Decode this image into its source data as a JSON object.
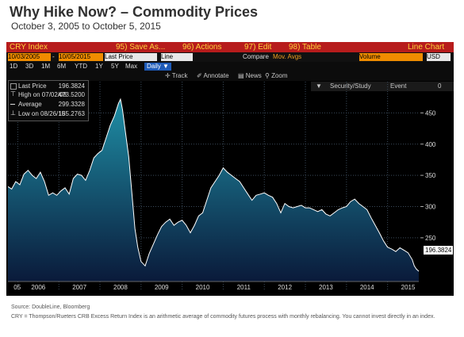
{
  "title": "Why Hike Now? – Commodity Prices",
  "subtitle": "October 3, 2005 to October 5, 2015",
  "terminal": {
    "menu": {
      "ticker": "CRY Index",
      "save": "95) Save As...",
      "actions": "96) Actions",
      "edit": "97) Edit",
      "table": "98) Table",
      "chart_type": "Line Chart"
    },
    "fields": {
      "start_date": "10/03/2005",
      "end_date": "10/05/2015",
      "field": "Last Price",
      "line_label": "Line",
      "compare": "Compare",
      "mov_avgs": "Mov. Avgs",
      "volume": "Volume",
      "currency": "USD"
    },
    "periods": [
      "1D",
      "3D",
      "1M",
      "6M",
      "YTD",
      "1Y",
      "5Y",
      "Max"
    ],
    "frequency": "Daily ▼",
    "tools": [
      "Track",
      "Annotate",
      "News",
      "Zoom"
    ],
    "right_tools": {
      "security_study": "Security/Study",
      "event": "Event",
      "num": "0"
    },
    "legend": [
      {
        "label": "Last Price",
        "value": "196.3824"
      },
      {
        "label": "High on 07/02/08",
        "value": "473.5200"
      },
      {
        "label": "Average",
        "value": "299.3328"
      },
      {
        "label": "Low on 08/26/15",
        "value": "185.2763"
      }
    ],
    "last_value": "196.3824"
  },
  "footer": {
    "source": "Source: DoubleLine, Bloomberg",
    "note": "CRY = Thompson/Rueters CRB Excess Return Index is an arithmetic average of commodity futures process with monthly rebalancing. You cannot invest directly in  an  index."
  },
  "colors": {
    "line": "#ffffff",
    "fill_top": "#1f8fa6",
    "fill_bottom": "#0a1a3a",
    "menu_bar": "#b71c1c"
  },
  "chart_data": {
    "type": "area",
    "title": "",
    "xlabel": "",
    "ylabel": "",
    "ylim": [
      180,
      500
    ],
    "yticks": [
      250,
      300,
      350,
      400,
      450
    ],
    "x_tick_labels": [
      "05",
      "2006",
      "2007",
      "2008",
      "2009",
      "2010",
      "2011",
      "2012",
      "2013",
      "2014",
      "2015"
    ],
    "x_tick_years": [
      2005.9,
      2006.5,
      2007.5,
      2008.5,
      2009.5,
      2010.5,
      2011.5,
      2012.5,
      2013.5,
      2014.5,
      2015.5
    ],
    "series": [
      {
        "name": "CRY Index",
        "x": [
          2005.76,
          2005.85,
          2005.95,
          2006.05,
          2006.15,
          2006.25,
          2006.35,
          2006.45,
          2006.55,
          2006.65,
          2006.75,
          2006.85,
          2006.95,
          2007.05,
          2007.15,
          2007.25,
          2007.35,
          2007.45,
          2007.55,
          2007.65,
          2007.75,
          2007.85,
          2007.95,
          2008.05,
          2008.15,
          2008.25,
          2008.35,
          2008.45,
          2008.5,
          2008.55,
          2008.62,
          2008.7,
          2008.78,
          2008.85,
          2008.92,
          2009.0,
          2009.1,
          2009.2,
          2009.3,
          2009.4,
          2009.5,
          2009.6,
          2009.7,
          2009.8,
          2009.9,
          2010.0,
          2010.1,
          2010.2,
          2010.3,
          2010.4,
          2010.5,
          2010.6,
          2010.7,
          2010.8,
          2010.9,
          2011.0,
          2011.1,
          2011.2,
          2011.3,
          2011.4,
          2011.5,
          2011.6,
          2011.7,
          2011.8,
          2011.9,
          2012.0,
          2012.1,
          2012.2,
          2012.3,
          2012.4,
          2012.5,
          2012.6,
          2012.7,
          2012.8,
          2012.9,
          2013.0,
          2013.1,
          2013.2,
          2013.3,
          2013.4,
          2013.5,
          2013.6,
          2013.7,
          2013.8,
          2013.9,
          2014.0,
          2014.1,
          2014.2,
          2014.3,
          2014.4,
          2014.5,
          2014.6,
          2014.7,
          2014.8,
          2014.9,
          2015.0,
          2015.1,
          2015.2,
          2015.3,
          2015.4,
          2015.5,
          2015.6,
          2015.65,
          2015.7,
          2015.76
        ],
        "y": [
          332,
          328,
          340,
          335,
          352,
          358,
          350,
          345,
          355,
          340,
          318,
          322,
          318,
          325,
          330,
          320,
          345,
          352,
          350,
          342,
          358,
          378,
          385,
          390,
          410,
          430,
          445,
          465,
          472,
          455,
          420,
          380,
          320,
          265,
          235,
          212,
          205,
          225,
          240,
          255,
          268,
          275,
          280,
          270,
          275,
          278,
          270,
          258,
          270,
          285,
          290,
          310,
          330,
          340,
          350,
          362,
          355,
          350,
          345,
          340,
          330,
          320,
          310,
          318,
          320,
          322,
          318,
          315,
          305,
          290,
          305,
          300,
          298,
          300,
          302,
          298,
          298,
          295,
          292,
          295,
          288,
          285,
          290,
          295,
          298,
          300,
          308,
          312,
          305,
          300,
          295,
          282,
          270,
          258,
          245,
          235,
          232,
          228,
          234,
          230,
          226,
          215,
          205,
          200,
          196.3824
        ]
      }
    ]
  }
}
